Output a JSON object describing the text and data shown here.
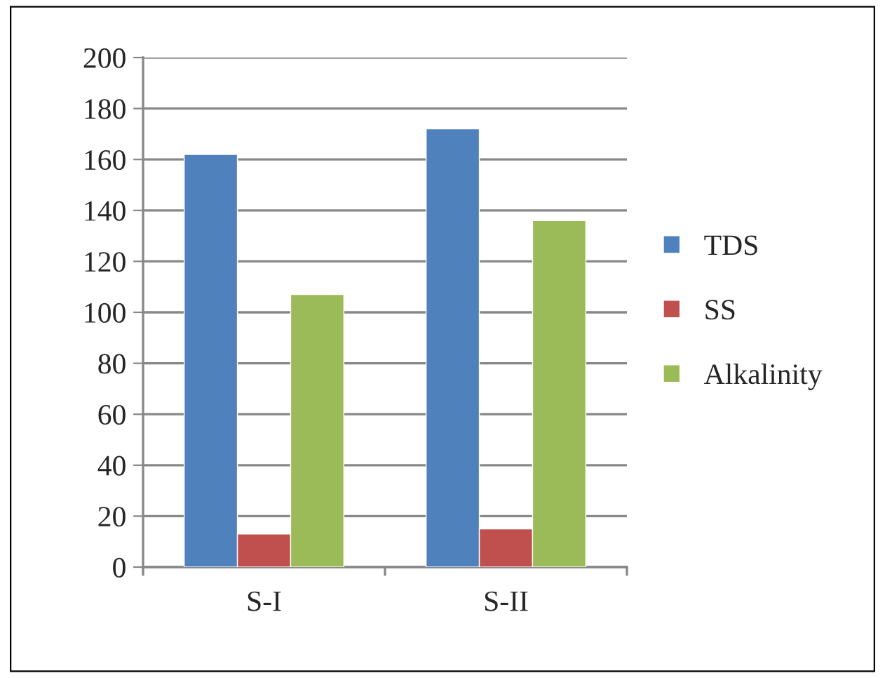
{
  "chart_data": {
    "type": "bar",
    "categories": [
      "S-I",
      "S-II"
    ],
    "series": [
      {
        "name": "TDS",
        "color": "#4f81bd",
        "values": [
          162,
          172
        ]
      },
      {
        "name": "SS",
        "color": "#c0504d",
        "values": [
          13,
          15
        ]
      },
      {
        "name": "Alkalinity",
        "color": "#9bbb59",
        "values": [
          107,
          136
        ]
      }
    ],
    "ylim": [
      0,
      200
    ],
    "yticks": [
      0,
      20,
      40,
      60,
      80,
      100,
      120,
      140,
      160,
      180,
      200
    ],
    "grid": "y",
    "legend": "right"
  }
}
